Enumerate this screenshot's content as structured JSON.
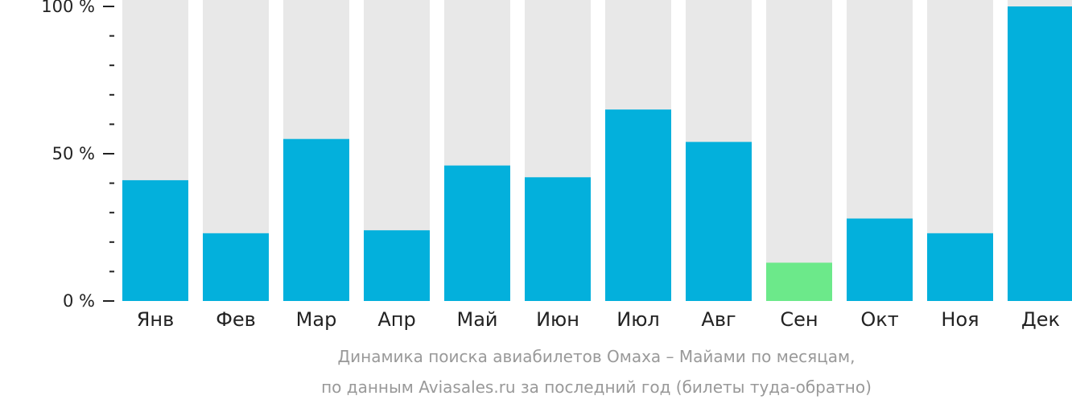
{
  "chart_data": {
    "type": "bar",
    "categories": [
      "Янв",
      "Фев",
      "Мар",
      "Апр",
      "Май",
      "Июн",
      "Июл",
      "Авг",
      "Сен",
      "Окт",
      "Ноя",
      "Дек"
    ],
    "values": [
      41,
      23,
      55,
      24,
      46,
      42,
      65,
      54,
      13,
      28,
      23,
      100
    ],
    "ylim": [
      0,
      100
    ],
    "y_ticks": [
      "0 %",
      "50 %",
      "100 %"
    ],
    "minor_ticks_between": 4,
    "colors": {
      "bar": "#03b0dc",
      "highlight_bar": "#6ce98a",
      "background_bar": "#e8e8e8",
      "axis": "#222222"
    },
    "highlight_index": 8
  },
  "caption": {
    "line1": "Динамика поиска авиабилетов Омаха – Майами по месяцам,",
    "line2": "по данным Aviasales.ru за последний год (билеты туда-обратно)"
  }
}
